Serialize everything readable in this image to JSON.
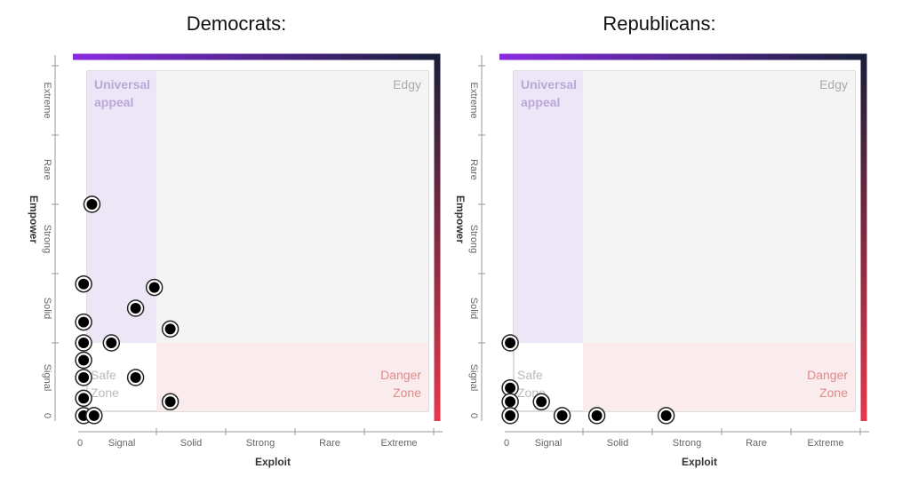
{
  "chart_data": [
    {
      "type": "scatter",
      "title": "Democrats:",
      "xlabel": "Exploit",
      "ylabel": "Empower",
      "x_ticks": [
        "0",
        "Signal",
        "Solid",
        "Strong",
        "Rare",
        "Extreme"
      ],
      "y_ticks": [
        "0",
        "Signal",
        "Solid",
        "Strong",
        "Rare",
        "Extreme"
      ],
      "xlim": [
        0,
        5
      ],
      "ylim": [
        0,
        5
      ],
      "regions": [
        {
          "name": "Universal appeal",
          "x": [
            0.1,
            1.0
          ],
          "y": [
            1.0,
            5.0
          ],
          "color": "#ece6f6"
        },
        {
          "name": "Edgy",
          "x": [
            1.0,
            5.0
          ],
          "y": [
            1.0,
            5.0
          ],
          "color": "#f4f4f4"
        },
        {
          "name": "Danger Zone",
          "x": [
            1.0,
            5.0
          ],
          "y": [
            0.1,
            1.0
          ],
          "color": "#faecec"
        },
        {
          "name": "Safe Zone",
          "x": [
            0.1,
            1.0
          ],
          "y": [
            0.1,
            1.0
          ],
          "color": "#ffffff"
        }
      ],
      "region_labels": {
        "universal": "Universal appeal",
        "edgy": "Edgy",
        "danger": "Danger Zone",
        "safe": "Safe Zone"
      },
      "points": [
        {
          "x": 0.07,
          "y": 3.0
        },
        {
          "x": -0.05,
          "y": 1.85
        },
        {
          "x": -0.05,
          "y": 1.3
        },
        {
          "x": -0.05,
          "y": 1.0
        },
        {
          "x": -0.05,
          "y": 0.75
        },
        {
          "x": -0.05,
          "y": 0.5
        },
        {
          "x": -0.05,
          "y": 0.2
        },
        {
          "x": -0.05,
          "y": -0.05
        },
        {
          "x": 0.1,
          "y": -0.05
        },
        {
          "x": 0.35,
          "y": 1.0
        },
        {
          "x": 0.7,
          "y": 1.5
        },
        {
          "x": 0.7,
          "y": 0.5
        },
        {
          "x": 0.97,
          "y": 1.8
        },
        {
          "x": 1.2,
          "y": 1.2
        },
        {
          "x": 1.2,
          "y": 0.15
        }
      ]
    },
    {
      "type": "scatter",
      "title": "Republicans:",
      "xlabel": "Exploit",
      "ylabel": "Empower",
      "x_ticks": [
        "0",
        "Signal",
        "Solid",
        "Strong",
        "Rare",
        "Extreme"
      ],
      "y_ticks": [
        "0",
        "Signal",
        "Solid",
        "Strong",
        "Rare",
        "Extreme"
      ],
      "xlim": [
        0,
        5
      ],
      "ylim": [
        0,
        5
      ],
      "regions": [
        {
          "name": "Universal appeal",
          "x": [
            0.1,
            1.0
          ],
          "y": [
            1.0,
            5.0
          ],
          "color": "#ece6f6"
        },
        {
          "name": "Edgy",
          "x": [
            1.0,
            5.0
          ],
          "y": [
            1.0,
            5.0
          ],
          "color": "#f4f4f4"
        },
        {
          "name": "Danger Zone",
          "x": [
            1.0,
            5.0
          ],
          "y": [
            0.1,
            1.0
          ],
          "color": "#faecec"
        },
        {
          "name": "Safe Zone",
          "x": [
            0.1,
            1.0
          ],
          "y": [
            0.1,
            1.0
          ],
          "color": "#ffffff"
        }
      ],
      "region_labels": {
        "universal": "Universal appeal",
        "edgy": "Edgy",
        "danger": "Danger Zone",
        "safe": "Safe Zone"
      },
      "points": [
        {
          "x": -0.05,
          "y": 1.0
        },
        {
          "x": -0.05,
          "y": 0.35
        },
        {
          "x": -0.05,
          "y": 0.15
        },
        {
          "x": -0.05,
          "y": -0.05
        },
        {
          "x": 0.4,
          "y": 0.15
        },
        {
          "x": 0.7,
          "y": -0.05
        },
        {
          "x": 1.2,
          "y": -0.05
        },
        {
          "x": 2.2,
          "y": -0.05
        }
      ]
    }
  ],
  "colors": {
    "frame_start": "#8a2be2",
    "frame_mid": "#1a1f3a",
    "frame_end": "#e8374a",
    "point_fill": "#000000"
  }
}
